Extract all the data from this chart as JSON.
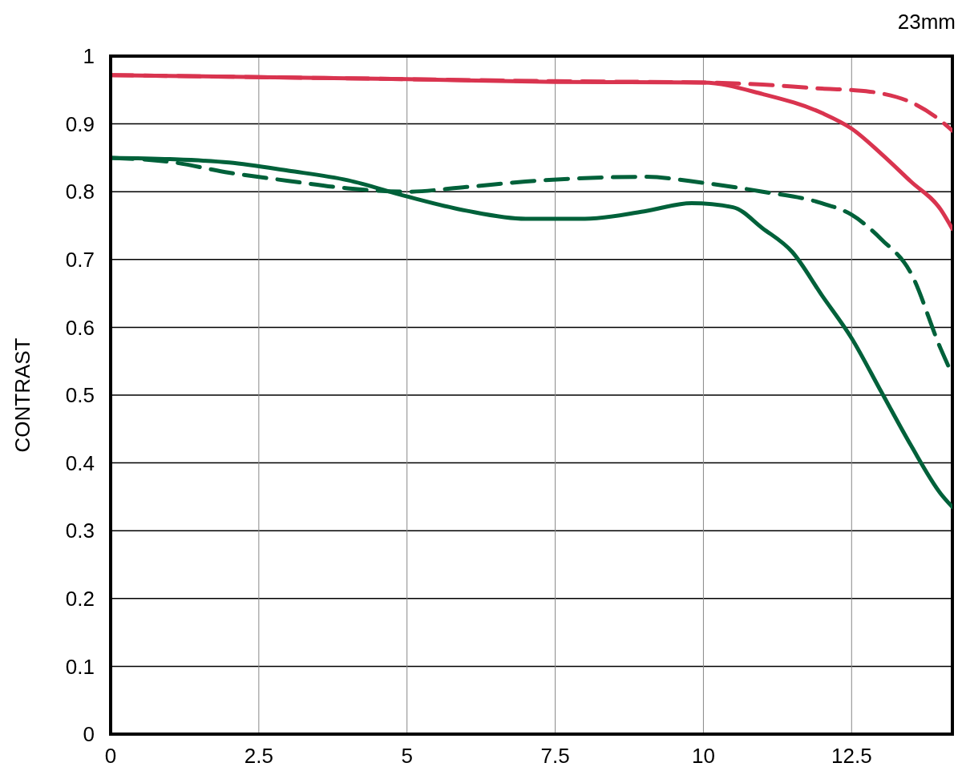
{
  "chart_data": {
    "type": "line",
    "title": "23mm",
    "ylabel": "CONTRAST",
    "xlim": [
      0,
      14.2
    ],
    "xticks": [
      0,
      2.5,
      5,
      7.5,
      10,
      12.5
    ],
    "ylim": [
      0,
      1
    ],
    "yticks": [
      0,
      0.1,
      0.2,
      0.3,
      0.4,
      0.5,
      0.6,
      0.7,
      0.8,
      0.9,
      1
    ],
    "grid": true,
    "legend": false,
    "series": [
      {
        "color": "#d9344f",
        "line_style": "solid",
        "x": [
          0,
          2.5,
          5,
          7.5,
          10,
          11,
          12,
          12.5,
          13,
          13.5,
          14,
          14.2
        ],
        "values": [
          0.972,
          0.969,
          0.966,
          0.962,
          0.961,
          0.944,
          0.916,
          0.893,
          0.856,
          0.815,
          0.774,
          0.745
        ]
      },
      {
        "color": "#d9344f",
        "line_style": "dashed",
        "x": [
          0,
          2.5,
          5,
          7.5,
          10,
          11,
          12,
          12.5,
          13,
          13.5,
          14,
          14.2
        ],
        "values": [
          0.972,
          0.969,
          0.966,
          0.963,
          0.961,
          0.958,
          0.952,
          0.95,
          0.945,
          0.932,
          0.905,
          0.89
        ]
      },
      {
        "color": "#00613a",
        "line_style": "solid",
        "x": [
          0,
          1,
          2,
          3,
          4,
          5,
          6,
          7,
          8,
          9,
          9.8,
          10.5,
          11,
          11.5,
          12,
          12.5,
          13,
          13.5,
          14,
          14.2
        ],
        "values": [
          0.85,
          0.848,
          0.843,
          0.831,
          0.817,
          0.793,
          0.772,
          0.76,
          0.76,
          0.771,
          0.783,
          0.777,
          0.746,
          0.711,
          0.647,
          0.584,
          0.505,
          0.426,
          0.355,
          0.335
        ]
      },
      {
        "color": "#00613a",
        "line_style": "dashed",
        "x": [
          0,
          1,
          2,
          3,
          4,
          5,
          6,
          7,
          8,
          9,
          10,
          11,
          12,
          12.5,
          13,
          13.5,
          14,
          14.2
        ],
        "values": [
          0.85,
          0.844,
          0.828,
          0.816,
          0.805,
          0.8,
          0.807,
          0.815,
          0.82,
          0.822,
          0.813,
          0.8,
          0.783,
          0.766,
          0.73,
          0.68,
          0.569,
          0.53
        ]
      }
    ]
  }
}
